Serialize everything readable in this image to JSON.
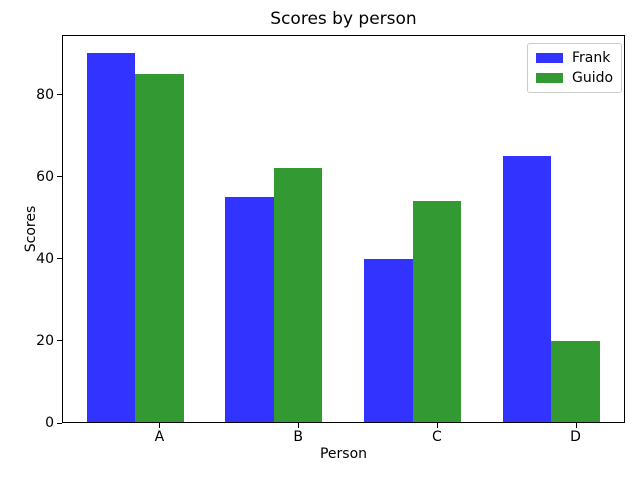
{
  "chart_data": {
    "type": "bar",
    "title": "Scores by person",
    "xlabel": "Person",
    "ylabel": "Scores",
    "categories": [
      "A",
      "B",
      "C",
      "D"
    ],
    "series": [
      {
        "name": "Frank",
        "color": "#3333ff",
        "values": [
          90,
          55,
          40,
          65
        ]
      },
      {
        "name": "Guido",
        "color": "#339933",
        "values": [
          85,
          62,
          54,
          20
        ]
      }
    ],
    "ylim": [
      0,
      94.5
    ],
    "yticks": [
      0,
      20,
      40,
      60,
      80
    ],
    "grid": false,
    "legend_position": "upper right",
    "background_color": "#ffffff",
    "spine_color": "#000000",
    "legend_border_color": "#cccccc"
  }
}
